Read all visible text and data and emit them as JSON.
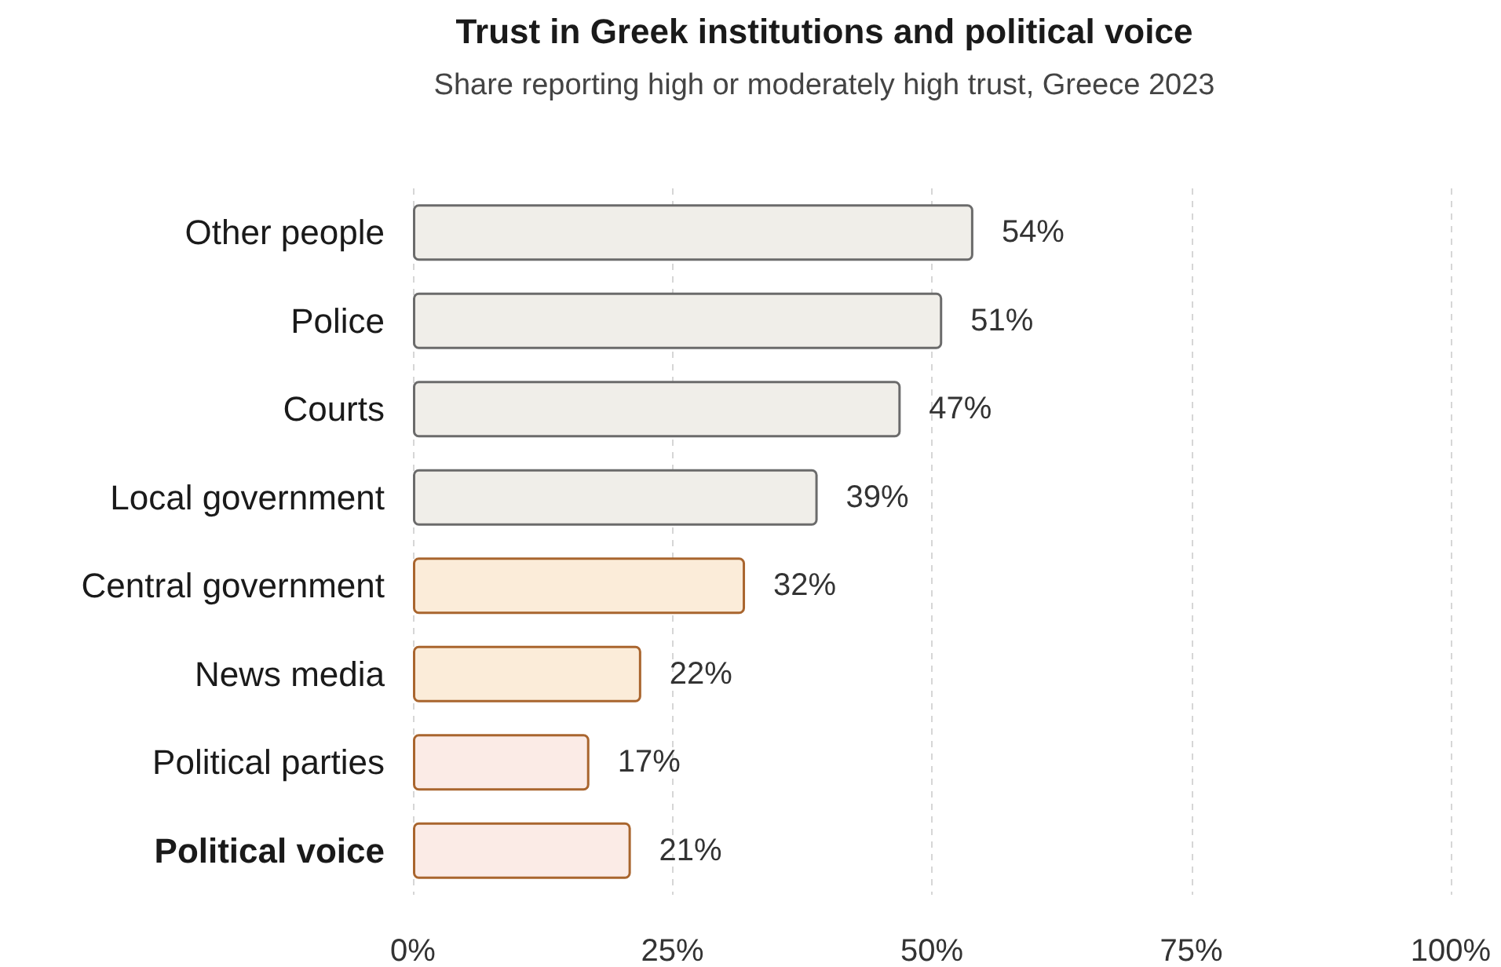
{
  "chart_data": {
    "type": "bar",
    "orientation": "horizontal",
    "title": "Trust in Greek institutions and political voice",
    "subtitle": "Share reporting high or moderately high trust, Greece 2023",
    "categories": [
      "Other people",
      "Police",
      "Courts",
      "Local government",
      "Central government",
      "News media",
      "Political parties",
      "Political voice"
    ],
    "values": [
      54,
      51,
      47,
      39,
      32,
      22,
      17,
      21
    ],
    "value_labels": [
      "54%",
      "51%",
      "47%",
      "39%",
      "32%",
      "22%",
      "17%",
      "21%"
    ],
    "colors": [
      "#f0eee9",
      "#f0eee9",
      "#f0eee9",
      "#f0eee9",
      "#fbecd9",
      "#fbecd9",
      "#fbebe6",
      "#fbebe6"
    ],
    "xlim": [
      0,
      100
    ],
    "xticks": [
      {
        "value": 0,
        "label": "0%"
      },
      {
        "value": 25,
        "label": "25%"
      },
      {
        "value": 50,
        "label": "50%"
      },
      {
        "value": 75,
        "label": "75%"
      },
      {
        "value": 100,
        "label": "100%"
      }
    ],
    "grid": "x"
  }
}
